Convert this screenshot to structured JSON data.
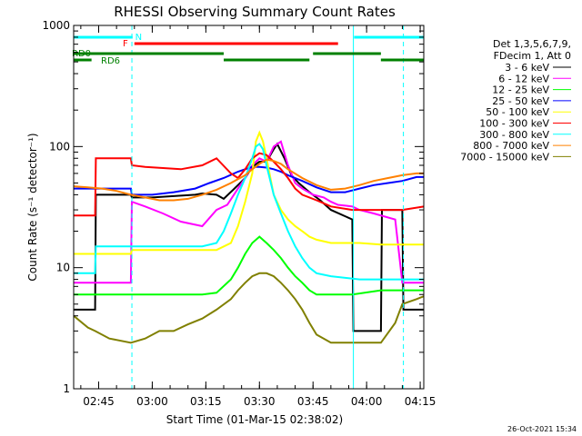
{
  "chart_data": {
    "type": "line",
    "title": "RHESSI Observing Summary Count Rates",
    "xlabel": "Start Time (01-Mar-15 02:38:02)",
    "ylabel": "Count Rate (s⁻¹ detector⁻¹)",
    "y_scale": "log",
    "ylim": [
      1,
      1000
    ],
    "xlim_minutes": [
      0,
      98
    ],
    "x_start": "02:38:02",
    "x_ticks": [
      {
        "label": "02:45",
        "t": 7
      },
      {
        "label": "03:00",
        "t": 22
      },
      {
        "label": "03:15",
        "t": 37
      },
      {
        "label": "03:30",
        "t": 52
      },
      {
        "label": "03:45",
        "t": 67
      },
      {
        "label": "04:00",
        "t": 82
      },
      {
        "label": "04:15",
        "t": 97
      }
    ],
    "y_ticks": [
      {
        "label": "1",
        "v": 1
      },
      {
        "label": "10",
        "v": 10
      },
      {
        "label": "100",
        "v": 100
      },
      {
        "label": "1000",
        "v": 1000
      }
    ],
    "legend_header": [
      "Det 1,3,5,6,7,9,",
      "FDecim 1, Att 0"
    ],
    "series": [
      {
        "name": "3 - 6 keV",
        "color": "#000000",
        "t": [
          0,
          6,
          6.2,
          16,
          16.3,
          22,
          28,
          34,
          36,
          40,
          42,
          45,
          48,
          50,
          52,
          54,
          56,
          57,
          59,
          61,
          63,
          66,
          69,
          72,
          78,
          78.3,
          82,
          86,
          86.3,
          92,
          92.3,
          98
        ],
        "values": [
          4.5,
          4.5,
          40,
          40,
          38,
          38,
          39,
          40,
          41,
          40,
          37,
          45,
          55,
          68,
          75,
          75,
          95,
          105,
          80,
          58,
          50,
          42,
          36,
          30,
          25,
          3,
          3,
          3,
          30,
          30,
          4.5,
          4.5
        ]
      },
      {
        "name": "6 - 12 keV",
        "color": "#ff00ff",
        "t": [
          0,
          6,
          6.2,
          16,
          16.3,
          20,
          25,
          30,
          36,
          40,
          43,
          46,
          48,
          50,
          52,
          54,
          56,
          58,
          60,
          62,
          64,
          67,
          70,
          72,
          74,
          78,
          80,
          84,
          90,
          92,
          98
        ],
        "values": [
          7.5,
          7.5,
          7.5,
          7.5,
          35,
          32,
          28,
          24,
          22,
          30,
          33,
          45,
          55,
          70,
          80,
          75,
          100,
          110,
          70,
          50,
          45,
          40,
          38,
          35,
          33,
          32,
          30,
          28,
          25,
          7.5,
          7.5
        ]
      },
      {
        "name": "12 - 25 keV",
        "color": "#00ff00",
        "t": [
          0,
          6,
          6.2,
          16,
          16.3,
          28,
          36,
          40,
          44,
          46,
          48,
          50,
          52,
          54,
          56,
          58,
          60,
          62,
          64,
          66,
          68,
          72,
          78,
          86,
          90,
          92,
          98
        ],
        "values": [
          6,
          6,
          6,
          6,
          6,
          6,
          6,
          6.2,
          8,
          10,
          13,
          16,
          18,
          16,
          14,
          12,
          10,
          8.5,
          7.5,
          6.5,
          6,
          6,
          6,
          6.5,
          6.5,
          6.5,
          6.5
        ]
      },
      {
        "name": "25 - 50 keV",
        "color": "#0000ff",
        "t": [
          0,
          6,
          6.2,
          16,
          16.3,
          22,
          28,
          34,
          38,
          42,
          46,
          48,
          50,
          52,
          54,
          56,
          58,
          60,
          64,
          68,
          72,
          76,
          80,
          84,
          88,
          92,
          96,
          98
        ],
        "values": [
          45,
          45,
          45,
          45,
          40,
          40,
          42,
          45,
          50,
          55,
          62,
          65,
          68,
          68,
          67,
          65,
          62,
          58,
          52,
          46,
          42,
          42,
          45,
          48,
          50,
          52,
          56,
          56
        ]
      },
      {
        "name": "50 - 100 keV",
        "color": "#ffff00",
        "t": [
          0,
          6,
          6.2,
          16,
          16.3,
          30,
          36,
          40,
          44,
          46,
          48,
          50,
          51,
          52,
          53,
          54,
          56,
          58,
          60,
          62,
          64,
          66,
          68,
          72,
          80,
          86,
          90,
          92,
          98
        ],
        "values": [
          13,
          13,
          13,
          13,
          14,
          14,
          14,
          14,
          16,
          22,
          35,
          60,
          110,
          130,
          110,
          80,
          40,
          30,
          25,
          22,
          20,
          18,
          17,
          16,
          16,
          15.5,
          15.5,
          15.5,
          15.5
        ]
      },
      {
        "name": "100 - 300 keV",
        "color": "#ff0000",
        "t": [
          0,
          6,
          6.2,
          16,
          16.3,
          20,
          30,
          36,
          40,
          44,
          46,
          48,
          50,
          52,
          54,
          56,
          58,
          60,
          62,
          64,
          66,
          68,
          70,
          72,
          78,
          86,
          86.2,
          92,
          98
        ],
        "values": [
          27,
          27,
          80,
          80,
          70,
          68,
          65,
          70,
          80,
          60,
          55,
          65,
          80,
          88,
          85,
          75,
          65,
          55,
          45,
          40,
          38,
          36,
          34,
          32,
          30,
          30,
          30,
          30,
          32
        ]
      },
      {
        "name": "300 - 800 keV",
        "color": "#00ffff",
        "t": [
          0,
          6,
          6.2,
          16,
          16.3,
          22,
          28,
          36,
          40,
          42,
          44,
          46,
          48,
          50,
          51,
          52,
          53,
          54,
          56,
          58,
          60,
          62,
          64,
          66,
          68,
          72,
          80,
          86,
          90,
          92,
          98
        ],
        "values": [
          9,
          9,
          15,
          15,
          15,
          15,
          15,
          15,
          16,
          20,
          28,
          40,
          55,
          80,
          100,
          105,
          95,
          70,
          40,
          28,
          20,
          15,
          12,
          10,
          9,
          8.5,
          8,
          8,
          8,
          8,
          8
        ]
      },
      {
        "name": "800 - 7000 keV",
        "color": "#ff8000",
        "t": [
          0,
          4,
          8,
          12,
          16,
          20,
          24,
          28,
          32,
          36,
          40,
          44,
          48,
          50,
          52,
          54,
          56,
          58,
          60,
          64,
          68,
          72,
          76,
          80,
          84,
          88,
          92,
          96,
          98
        ],
        "values": [
          47,
          46,
          45,
          43,
          40,
          38,
          36,
          36,
          37,
          40,
          44,
          50,
          58,
          65,
          72,
          78,
          76,
          72,
          65,
          55,
          48,
          44,
          45,
          48,
          52,
          55,
          58,
          60,
          60
        ]
      },
      {
        "name": "7000 - 15000 keV",
        "color": "#808000",
        "t": [
          0,
          4,
          6,
          10,
          16,
          20,
          24,
          28,
          32,
          36,
          40,
          44,
          46,
          48,
          50,
          52,
          54,
          56,
          58,
          60,
          62,
          64,
          66,
          68,
          72,
          80,
          86,
          90,
          92,
          96,
          98
        ],
        "values": [
          4,
          3.2,
          3,
          2.6,
          2.4,
          2.6,
          3,
          3,
          3.4,
          3.8,
          4.5,
          5.5,
          6.5,
          7.5,
          8.5,
          9,
          9,
          8.5,
          7.5,
          6.5,
          5.5,
          4.5,
          3.5,
          2.8,
          2.4,
          2.4,
          2.4,
          3.5,
          5,
          5.5,
          5.8
        ]
      }
    ],
    "annotations": {
      "state_bars": [
        {
          "label": "N",
          "color": "#00ffff",
          "segments": [
            [
              0,
              16.5
            ],
            [
              78.5,
              98
            ]
          ]
        },
        {
          "label": "F",
          "color": "#ff0000",
          "segments": [
            [
              17,
              74
            ]
          ]
        },
        {
          "label": "RD0",
          "color": "#008000",
          "segments": [
            [
              0,
              42
            ],
            [
              67,
              86
            ]
          ]
        },
        {
          "label": "RD6",
          "color": "#008000",
          "segments": [
            [
              0,
              5
            ],
            [
              42,
              66
            ],
            [
              86,
              98
            ]
          ]
        }
      ],
      "vertical_lines": [
        {
          "t": 16.3,
          "style": "dashed"
        },
        {
          "t": 78.3,
          "style": "solid"
        },
        {
          "t": 92.3,
          "style": "dashed"
        }
      ]
    },
    "footer_date": "26-Oct-2021 15:34"
  }
}
